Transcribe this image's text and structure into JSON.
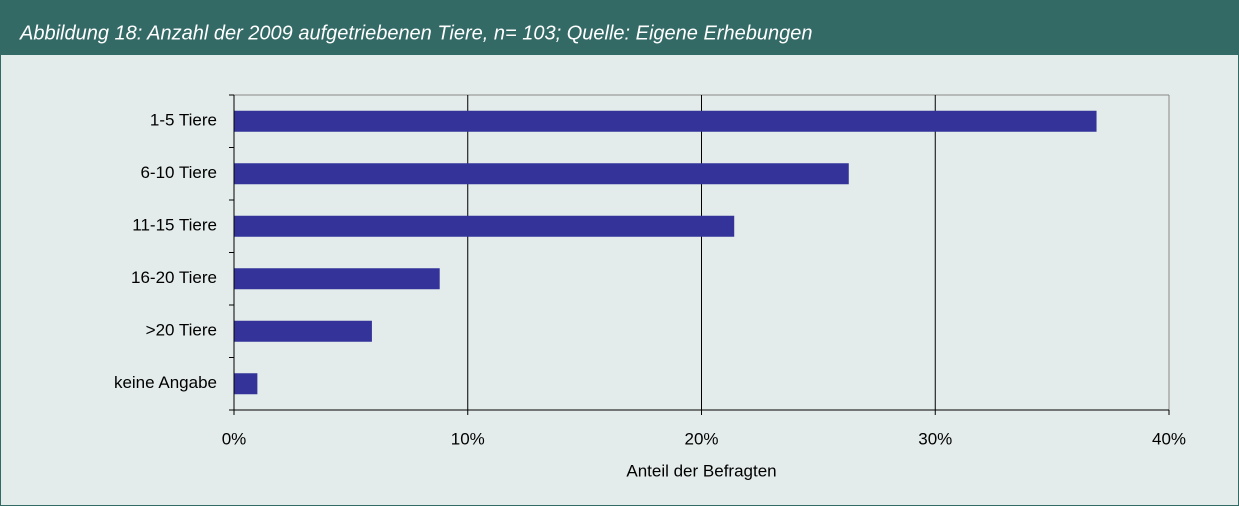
{
  "chart_data": {
    "type": "bar",
    "orientation": "horizontal",
    "title": "Abbildung 18: Anzahl der 2009 aufgetriebenen Tiere, n= 103; Quelle: Eigene Erhebungen",
    "categories": [
      "1-5 Tiere",
      "6-10 Tiere",
      "11-15 Tiere",
      "16-20 Tiere",
      ">20 Tiere",
      "keine Angabe"
    ],
    "values": [
      36.9,
      26.3,
      21.4,
      8.8,
      5.9,
      1.0
    ],
    "color": "#333399",
    "xlabel": "Anteil der Befragten",
    "xlim": [
      0,
      40
    ],
    "xticks": [
      {
        "value": 0,
        "label": "0%"
      },
      {
        "value": 10,
        "label": "10%"
      },
      {
        "value": 20,
        "label": "20%"
      },
      {
        "value": 30,
        "label": "30%"
      },
      {
        "value": 40,
        "label": "40%"
      }
    ],
    "grid": true
  }
}
